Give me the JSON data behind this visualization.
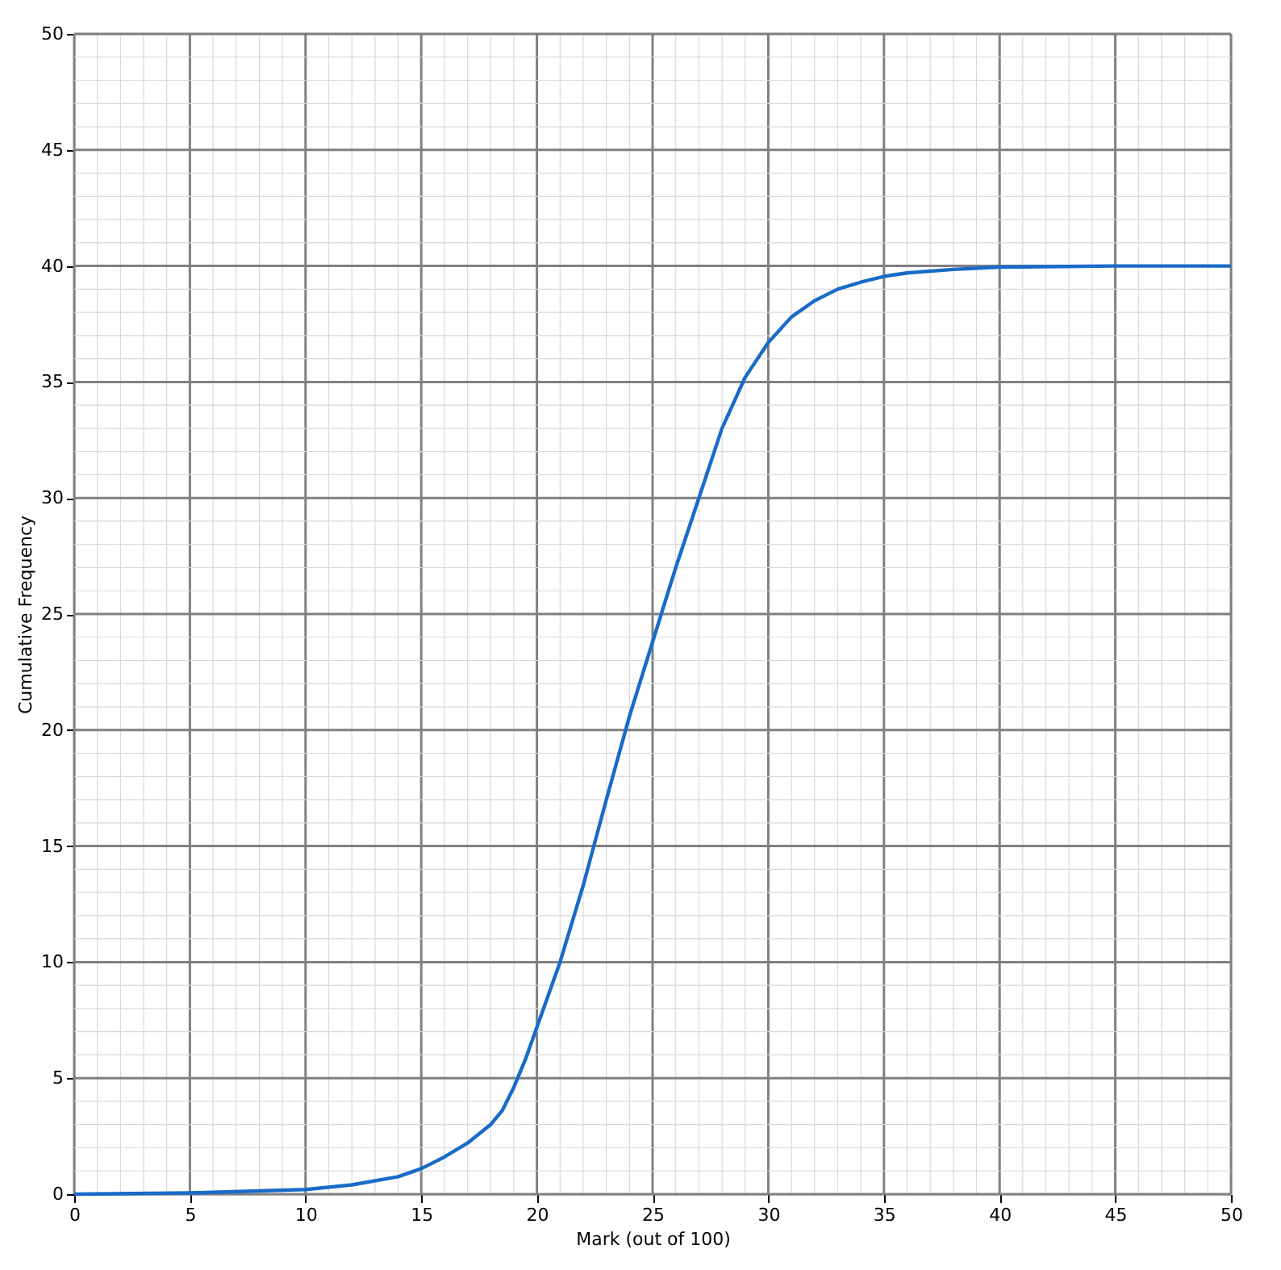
{
  "chart_data": {
    "type": "line",
    "xlabel": "Mark (out of 100)",
    "ylabel": "Cumulative Frequency",
    "x": [
      0,
      5,
      10,
      12,
      14,
      15,
      16,
      17,
      18,
      18.5,
      19,
      19.5,
      20,
      21,
      22,
      23,
      24,
      25,
      26,
      27,
      28,
      29,
      30,
      31,
      32,
      33,
      34,
      35,
      36,
      38,
      40,
      45,
      50
    ],
    "series": [
      {
        "color": "#1a6bc8",
        "values": [
          0,
          0.05,
          0.2,
          0.4,
          0.75,
          1.1,
          1.6,
          2.2,
          3.0,
          3.6,
          4.6,
          5.8,
          7.2,
          10,
          13.3,
          17,
          20.6,
          23.8,
          27,
          30,
          33,
          35.2,
          36.7,
          37.8,
          38.5,
          39,
          39.3,
          39.55,
          39.7,
          39.85,
          39.95,
          40,
          40
        ]
      }
    ],
    "xlim": [
      0,
      50
    ],
    "ylim": [
      0,
      50
    ],
    "xticks": [
      0,
      {
        "value": 1,
        "label": null
      },
      {
        "value": 2,
        "label": null
      },
      {
        "value": 3,
        "label": null
      },
      {
        "value": 4,
        "label": null
      },
      5,
      {
        "value": 6,
        "label": null
      },
      {
        "value": 7,
        "label": null
      },
      {
        "value": 8,
        "label": null
      },
      {
        "value": 9,
        "label": null
      },
      10,
      {
        "value": 11,
        "label": null
      },
      {
        "value": 12,
        "label": null
      },
      {
        "value": 13,
        "label": null
      },
      {
        "value": 14,
        "label": null
      },
      15,
      {
        "value": 16,
        "label": null
      },
      {
        "value": 17,
        "label": null
      },
      {
        "value": 18,
        "label": null
      },
      {
        "value": 19,
        "label": null
      },
      20,
      {
        "value": 21,
        "label": null
      },
      {
        "value": 22,
        "label": null
      },
      {
        "value": 23,
        "label": null
      },
      {
        "value": 24,
        "label": null
      },
      25,
      {
        "value": 26,
        "label": null
      },
      {
        "value": 27,
        "label": null
      },
      {
        "value": 28,
        "label": null
      },
      {
        "value": 29,
        "label": null
      },
      30,
      {
        "value": 31,
        "label": null
      },
      {
        "value": 32,
        "label": null
      },
      {
        "value": 33,
        "label": null
      },
      {
        "value": 34,
        "label": null
      },
      35,
      {
        "value": 36,
        "label": null
      },
      {
        "value": 37,
        "label": null
      },
      {
        "value": 38,
        "label": null
      },
      {
        "value": 39,
        "label": null
      },
      40,
      {
        "value": 41,
        "label": null
      },
      {
        "value": 42,
        "label": null
      },
      {
        "value": 43,
        "label": null
      },
      {
        "value": 44,
        "label": null
      },
      45,
      {
        "value": 46,
        "label": null
      },
      {
        "value": 47,
        "label": null
      },
      {
        "value": 48,
        "label": null
      },
      {
        "value": 49,
        "label": null
      },
      50
    ],
    "yticks": [
      0,
      {
        "value": 1,
        "label": null
      },
      {
        "value": 2,
        "label": null
      },
      {
        "value": 3,
        "label": null
      },
      {
        "value": 4,
        "label": null
      },
      5,
      {
        "value": 6,
        "label": null
      },
      {
        "value": 7,
        "label": null
      },
      {
        "value": 8,
        "label": null
      },
      {
        "value": 9,
        "label": null
      },
      10,
      {
        "value": 11,
        "label": null
      },
      {
        "value": 12,
        "label": null
      },
      {
        "value": 13,
        "label": null
      },
      {
        "value": 14,
        "label": null
      },
      15,
      {
        "value": 16,
        "label": null
      },
      {
        "value": 17,
        "label": null
      },
      {
        "value": 18,
        "label": null
      },
      {
        "value": 19,
        "label": null
      },
      20,
      {
        "value": 21,
        "label": null
      },
      {
        "value": 22,
        "label": null
      },
      {
        "value": 23,
        "label": null
      },
      {
        "value": 24,
        "label": null
      },
      25,
      {
        "value": 26,
        "label": null
      },
      {
        "value": 27,
        "label": null
      },
      {
        "value": 28,
        "label": null
      },
      {
        "value": 29,
        "label": null
      },
      30,
      {
        "value": 31,
        "label": null
      },
      {
        "value": 32,
        "label": null
      },
      {
        "value": 33,
        "label": null
      },
      {
        "value": 34,
        "label": null
      },
      35,
      {
        "value": 36,
        "label": null
      },
      {
        "value": 37,
        "label": null
      },
      {
        "value": 38,
        "label": null
      },
      {
        "value": 39,
        "label": null
      },
      40,
      {
        "value": 41,
        "label": null
      },
      {
        "value": 42,
        "label": null
      },
      {
        "value": 43,
        "label": null
      },
      {
        "value": 44,
        "label": null
      },
      45,
      {
        "value": 46,
        "label": null
      },
      {
        "value": 47,
        "label": null
      },
      {
        "value": 48,
        "label": null
      },
      {
        "value": 49,
        "label": null
      },
      50
    ],
    "grid": true
  }
}
